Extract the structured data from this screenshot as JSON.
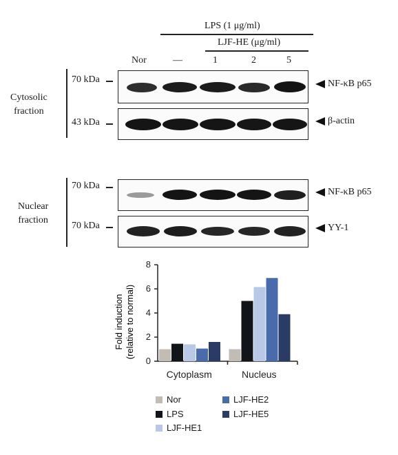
{
  "header": {
    "lps": "LPS (1 μg/ml)",
    "ljf": "LJF-HE (μg/ml)",
    "lanes": [
      "Nor",
      "—",
      "1",
      "2",
      "5"
    ]
  },
  "sections": {
    "cytosolic": "Cytosolic\nfraction",
    "nuclear": "Nuclear\nfraction"
  },
  "blots": [
    {
      "size": "70 kDa",
      "target": "NF-κB p65"
    },
    {
      "size": "43 kDa",
      "target": "β-actin"
    },
    {
      "size": "70 kDa",
      "target": "NF-κB p65"
    },
    {
      "size": "70 kDa",
      "target": "YY-1"
    }
  ],
  "colors": {
    "Nor": "#c3bcb5",
    "LPS": "#111418",
    "LJF-HE1": "#b8c8e6",
    "LJF-HE2": "#4a6bab",
    "LJF-HE5": "#2a3c66"
  },
  "chart_data": {
    "type": "bar",
    "categories": [
      "Cytoplasm",
      "Nucleus"
    ],
    "series": [
      {
        "name": "Nor",
        "values": [
          1.0,
          1.0
        ]
      },
      {
        "name": "LPS",
        "values": [
          1.45,
          5.0
        ]
      },
      {
        "name": "LJF-HE1",
        "values": [
          1.4,
          6.15
        ]
      },
      {
        "name": "LJF-HE2",
        "values": [
          1.05,
          6.9
        ]
      },
      {
        "name": "LJF-HE5",
        "values": [
          1.6,
          3.9
        ]
      }
    ],
    "ylabel_line1": "Fold induction",
    "ylabel_line2": "(relative to normal)",
    "ylim": [
      0,
      8
    ],
    "yticks": [
      "0",
      "2",
      "4",
      "6",
      "8"
    ],
    "legend_position": "bottom"
  }
}
